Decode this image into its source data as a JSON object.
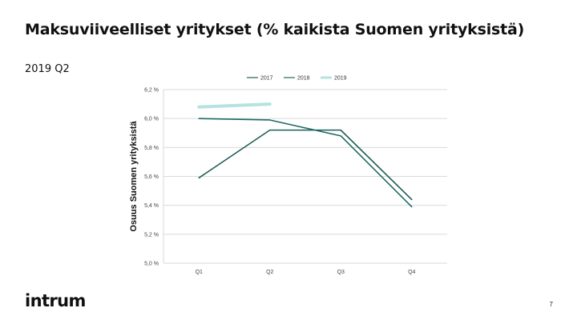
{
  "slide": {
    "title": "Maksuviiveelliset yritykset (% kaikista Suomen yrityksistä)",
    "subtitle": "2019 Q2",
    "logo_text": "intrum",
    "page_number": "7"
  },
  "chart_data": {
    "type": "line",
    "title": "",
    "xlabel": "",
    "ylabel": "Osuus Suomen yrityksistä",
    "categories": [
      "Q1",
      "Q2",
      "Q3",
      "Q4"
    ],
    "ylim": [
      5.0,
      6.2
    ],
    "yticks": [
      5.0,
      5.2,
      5.4,
      5.6,
      5.8,
      6.0,
      6.2
    ],
    "ytick_labels": [
      "5,0 %",
      "5,2 %",
      "5,4 %",
      "5,6 %",
      "5,8 %",
      "6,0 %",
      "6,2 %"
    ],
    "grid": true,
    "legend_position": "top-center",
    "series": [
      {
        "name": "2017",
        "values": [
          5.59,
          5.92,
          5.92,
          5.44
        ],
        "color": "#1f5c57"
      },
      {
        "name": "2018",
        "values": [
          6.0,
          5.99,
          5.88,
          5.39
        ],
        "color": "#1d6b65"
      },
      {
        "name": "2019",
        "values": [
          6.08,
          6.1,
          null,
          null
        ],
        "color": "#b5e3e0"
      }
    ]
  }
}
